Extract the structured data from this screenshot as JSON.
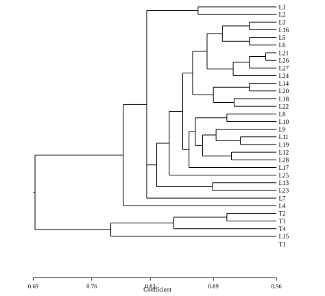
{
  "axis": {
    "title": "Coefficient",
    "min": 0.69,
    "max": 0.96,
    "ticks": [
      "0.69",
      "0.76",
      "0.82",
      "0.89",
      "0.96"
    ],
    "tick_values": [
      0.69,
      0.755,
      0.82,
      0.89,
      0.96
    ]
  },
  "leaves": [
    "L1",
    "L2",
    "L3",
    "L16",
    "L5",
    "L6",
    "L21",
    "L26",
    "L27",
    "L24",
    "L14",
    "L20",
    "L18",
    "L22",
    "L8",
    "L10",
    "L9",
    "L11",
    "L19",
    "L12",
    "L28",
    "L17",
    "L25",
    "L13",
    "L23",
    "L7",
    "L4",
    "T2",
    "T3",
    "T4",
    "L15",
    "T1"
  ],
  "tree": {
    "h": 0.692,
    "c": [
      {
        "h": 0.79,
        "c": [
          {
            "h": 0.816,
            "c": [
              {
                "h": 0.873,
                "c": [
                  {
                    "leaf": "L1"
                  },
                  {
                    "leaf": "L2"
                  }
                ]
              },
              {
                "h": 0.827,
                "c": [
                  {
                    "h": 0.841,
                    "c": [
                      {
                        "h": 0.856,
                        "c": [
                          {
                            "h": 0.867,
                            "c": [
                              {
                                "h": 0.883,
                                "c": [
                                  {
                                    "h": 0.9,
                                    "c": [
                                      {
                                        "h": 0.93,
                                        "c": [
                                          {
                                            "leaf": "L3"
                                          },
                                          {
                                            "leaf": "L16"
                                          }
                                        ]
                                      },
                                      {
                                        "h": 0.93,
                                        "c": [
                                          {
                                            "leaf": "L5"
                                          },
                                          {
                                            "leaf": "L6"
                                          }
                                        ]
                                      }
                                    ]
                                  },
                                  {
                                    "h": 0.912,
                                    "c": [
                                      {
                                        "h": 0.93,
                                        "c": [
                                          {
                                            "h": 0.948,
                                            "c": [
                                              {
                                                "leaf": "L21"
                                              },
                                              {
                                                "leaf": "L26"
                                              }
                                            ]
                                          },
                                          {
                                            "leaf": "L27"
                                          }
                                        ]
                                      },
                                      {
                                        "leaf": "L24"
                                      }
                                    ]
                                  }
                                ]
                              },
                              {
                                "h": 0.89,
                                "c": [
                                  {
                                    "h": 0.93,
                                    "c": [
                                      {
                                        "leaf": "L14"
                                      },
                                      {
                                        "leaf": "L20"
                                      }
                                    ]
                                  },
                                  {
                                    "h": 0.913,
                                    "c": [
                                      {
                                        "leaf": "L18"
                                      },
                                      {
                                        "leaf": "L22"
                                      }
                                    ]
                                  }
                                ]
                              }
                            ]
                          },
                          {
                            "h": 0.863,
                            "c": [
                              {
                                "h": 0.87,
                                "c": [
                                  {
                                    "h": 0.905,
                                    "c": [
                                      {
                                        "leaf": "L8"
                                      },
                                      {
                                        "leaf": "L10"
                                      }
                                    ]
                                  },
                                  {
                                    "h": 0.878,
                                    "c": [
                                      {
                                        "h": 0.893,
                                        "c": [
                                          {
                                            "leaf": "L9"
                                          },
                                          {
                                            "h": 0.92,
                                            "c": [
                                              {
                                                "leaf": "L11"
                                              },
                                              {
                                                "leaf": "L19"
                                              }
                                            ]
                                          }
                                        ]
                                      },
                                      {
                                        "h": 0.91,
                                        "c": [
                                          {
                                            "leaf": "L12"
                                          },
                                          {
                                            "leaf": "L28"
                                          }
                                        ]
                                      }
                                    ]
                                  }
                                ]
                              },
                              {
                                "leaf": "L17"
                              }
                            ]
                          }
                        ]
                      },
                      {
                        "leaf": "L25"
                      }
                    ]
                  },
                  {
                    "h": 0.889,
                    "c": [
                      {
                        "leaf": "L13"
                      },
                      {
                        "leaf": "L23"
                      }
                    ]
                  }
                ]
              },
              {
                "leaf": "L7"
              }
            ]
          },
          {
            "leaf": "L4"
          }
        ]
      },
      {
        "h": 0.776,
        "c": [
          {
            "h": 0.846,
            "c": [
              {
                "h": 0.905,
                "c": [
                  {
                    "leaf": "T2"
                  },
                  {
                    "leaf": "T3"
                  }
                ]
              },
              {
                "leaf": "T4"
              }
            ]
          },
          {
            "leaf": "L15"
          }
        ]
      }
    ]
  }
}
